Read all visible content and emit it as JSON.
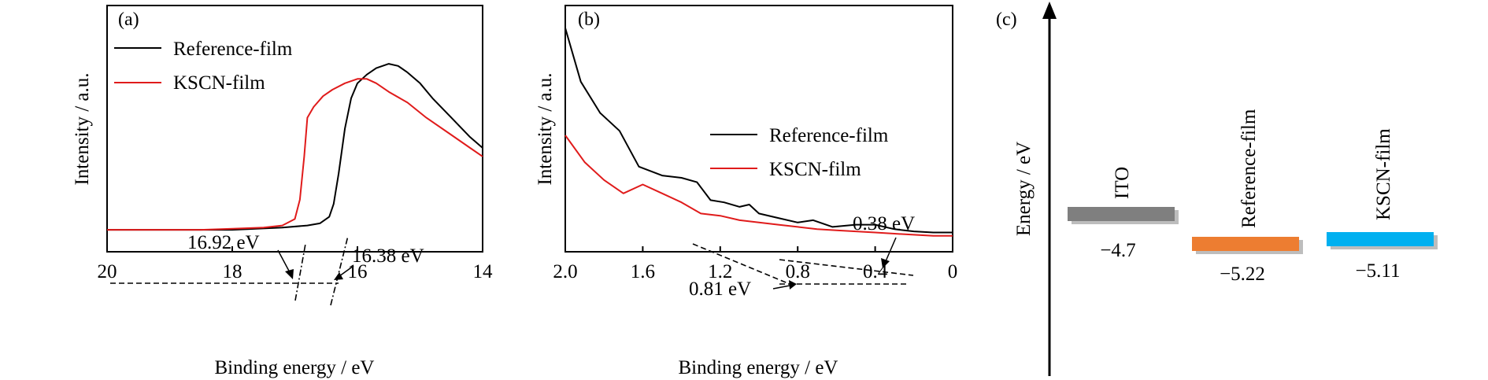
{
  "chart_data": [
    {
      "panel": "(a)",
      "type": "line",
      "xlabel": "Binding energy / eV",
      "ylabel": "Intensity / a.u.",
      "xlim": [
        20,
        14
      ],
      "x_reversed": true,
      "xticks": [
        "20",
        "18",
        "16",
        "14"
      ],
      "legend": {
        "placement": "top-left"
      },
      "series": [
        {
          "name": "Reference-film",
          "color": "#000000",
          "points": [
            [
              20,
              0.08
            ],
            [
              18,
              0.08
            ],
            [
              17.2,
              0.09
            ],
            [
              16.8,
              0.1
            ],
            [
              16.6,
              0.11
            ],
            [
              16.45,
              0.14
            ],
            [
              16.38,
              0.2
            ],
            [
              16.3,
              0.34
            ],
            [
              16.2,
              0.55
            ],
            [
              16.1,
              0.69
            ],
            [
              16.0,
              0.76
            ],
            [
              15.85,
              0.8
            ],
            [
              15.7,
              0.83
            ],
            [
              15.5,
              0.85
            ],
            [
              15.35,
              0.84
            ],
            [
              15.2,
              0.81
            ],
            [
              15.0,
              0.76
            ],
            [
              14.8,
              0.69
            ],
            [
              14.5,
              0.6
            ],
            [
              14.2,
              0.51
            ],
            [
              14.0,
              0.46
            ]
          ]
        },
        {
          "name": "KSCN-film",
          "color": "#e01b1b",
          "points": [
            [
              20,
              0.08
            ],
            [
              18.5,
              0.08
            ],
            [
              18,
              0.085
            ],
            [
              17.5,
              0.09
            ],
            [
              17.2,
              0.1
            ],
            [
              17.0,
              0.13
            ],
            [
              16.92,
              0.22
            ],
            [
              16.85,
              0.42
            ],
            [
              16.8,
              0.6
            ],
            [
              16.7,
              0.65
            ],
            [
              16.55,
              0.7
            ],
            [
              16.4,
              0.73
            ],
            [
              16.2,
              0.76
            ],
            [
              16.0,
              0.78
            ],
            [
              15.85,
              0.78
            ],
            [
              15.7,
              0.76
            ],
            [
              15.5,
              0.72
            ],
            [
              15.2,
              0.67
            ],
            [
              14.9,
              0.6
            ],
            [
              14.5,
              0.52
            ],
            [
              14.2,
              0.46
            ],
            [
              14.0,
              0.42
            ]
          ]
        }
      ],
      "annotations": [
        {
          "text": "16.92 eV",
          "x": 16.92
        },
        {
          "text": "16.38 eV",
          "x": 16.38
        }
      ]
    },
    {
      "panel": "(b)",
      "type": "line",
      "xlabel": "Binding energy / eV",
      "ylabel": "Intensity / a.u.",
      "xlim": [
        2.0,
        0
      ],
      "x_reversed": true,
      "xticks": [
        "2.0",
        "1.6",
        "1.2",
        "0.8",
        "0.4",
        "0"
      ],
      "legend": {
        "placement": "center-right"
      },
      "series": [
        {
          "name": "Reference-film",
          "color": "#000000",
          "points": [
            [
              2.0,
              0.98
            ],
            [
              1.92,
              0.74
            ],
            [
              1.82,
              0.6
            ],
            [
              1.72,
              0.52
            ],
            [
              1.62,
              0.36
            ],
            [
              1.5,
              0.32
            ],
            [
              1.4,
              0.31
            ],
            [
              1.32,
              0.29
            ],
            [
              1.25,
              0.21
            ],
            [
              1.18,
              0.2
            ],
            [
              1.1,
              0.18
            ],
            [
              1.05,
              0.19
            ],
            [
              1.0,
              0.15
            ],
            [
              0.9,
              0.13
            ],
            [
              0.8,
              0.11
            ],
            [
              0.72,
              0.12
            ],
            [
              0.62,
              0.09
            ],
            [
              0.5,
              0.1
            ],
            [
              0.4,
              0.1
            ],
            [
              0.3,
              0.08
            ],
            [
              0.2,
              0.07
            ],
            [
              0.1,
              0.065
            ],
            [
              0,
              0.065
            ]
          ]
        },
        {
          "name": "KSCN-film",
          "color": "#e01b1b",
          "points": [
            [
              2.0,
              0.5
            ],
            [
              1.9,
              0.38
            ],
            [
              1.8,
              0.3
            ],
            [
              1.7,
              0.24
            ],
            [
              1.6,
              0.28
            ],
            [
              1.5,
              0.24
            ],
            [
              1.4,
              0.2
            ],
            [
              1.3,
              0.15
            ],
            [
              1.2,
              0.14
            ],
            [
              1.1,
              0.12
            ],
            [
              1.0,
              0.11
            ],
            [
              0.9,
              0.1
            ],
            [
              0.8,
              0.09
            ],
            [
              0.7,
              0.08
            ],
            [
              0.6,
              0.075
            ],
            [
              0.5,
              0.07
            ],
            [
              0.4,
              0.065
            ],
            [
              0.3,
              0.06
            ],
            [
              0.2,
              0.055
            ],
            [
              0.1,
              0.05
            ],
            [
              0,
              0.05
            ]
          ]
        }
      ],
      "annotations": [
        {
          "text": "0.38 eV",
          "x": 0.38
        },
        {
          "text": "0.81 eV",
          "x": 0.81
        }
      ]
    },
    {
      "panel": "(c)",
      "type": "energy-level",
      "ylabel": "Energy / eV",
      "levels": [
        {
          "label": "ITO",
          "value": -4.7,
          "value_text": "−4.7",
          "color": "#7f7f7f"
        },
        {
          "label": "Reference-film",
          "value": -5.22,
          "value_text": "−5.22",
          "color": "#ed7d31"
        },
        {
          "label": "KSCN-film",
          "value": -5.11,
          "value_text": "−5.11",
          "color": "#00b0f0"
        }
      ]
    }
  ]
}
